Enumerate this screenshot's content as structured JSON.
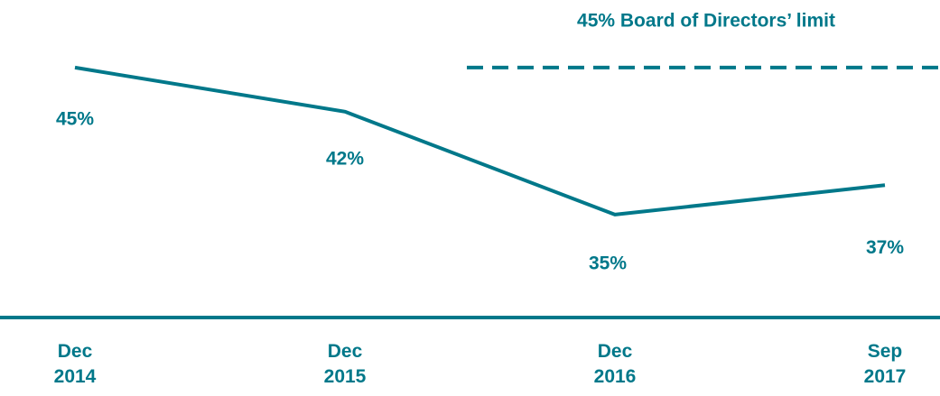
{
  "chart_data": {
    "type": "line",
    "categories": [
      "Dec 2014",
      "Dec 2015",
      "Dec 2016",
      "Sep 2017"
    ],
    "series": [
      {
        "color": "#00788a",
        "values": [
          45,
          42,
          35,
          37
        ],
        "value_labels": [
          "45%",
          "42%",
          "35%",
          "37%"
        ]
      }
    ],
    "ylim": [
      28,
      48
    ],
    "reference_line": {
      "value": 45,
      "label": "45% Board of Directors’ limit",
      "style": "dashed"
    }
  }
}
